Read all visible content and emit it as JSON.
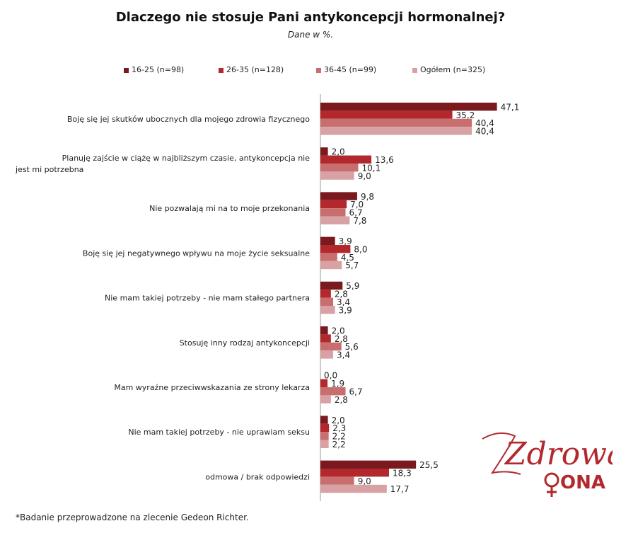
{
  "chart_data": {
    "type": "bar",
    "orientation": "horizontal",
    "title": "Dlaczego nie stosuje Pani antykoncepcji hormonalnej?",
    "subtitle": "Dane w %.",
    "legend_position": "top",
    "categories": [
      "Boję się jej skutków ubocznych dla mojego zdrowia fizycznego",
      "Planuję zajście w ciążę w najbliższym czasie, antykoncepcja nie jest mi potrzebna",
      "Nie pozwalają mi na to moje przekonania",
      "Boję się jej negatywnego wpływu na moje życie seksualne",
      "Nie mam takiej potrzeby - nie mam stałego partnera",
      "Stosuję inny rodzaj antykoncepcji",
      "Mam wyraźne przeciwwskazania ze strony lekarza",
      "Nie mam takiej potrzeby - nie uprawiam seksu",
      "odmowa / brak odpowiedzi"
    ],
    "series": [
      {
        "name": "16-25 (n=98)",
        "color": "#7b1a1e",
        "values": [
          47.1,
          2.0,
          9.8,
          3.9,
          5.9,
          2.0,
          0.0,
          2.0,
          25.5
        ],
        "labels": [
          "47,1",
          "2,0",
          "9,8",
          "3,9",
          "5,9",
          "2,0",
          "0,0",
          "2,0",
          "25,5"
        ]
      },
      {
        "name": "26-35 (n=128)",
        "color": "#b3282d",
        "values": [
          35.2,
          13.6,
          7.0,
          8.0,
          2.8,
          2.8,
          1.9,
          2.3,
          18.3
        ],
        "labels": [
          "35,2",
          "13,6",
          "7,0",
          "8,0",
          "2,8",
          "2,8",
          "1,9",
          "2,3",
          "18,3"
        ]
      },
      {
        "name": "36-45 (n=99)",
        "color": "#c96e6f",
        "values": [
          40.4,
          10.1,
          6.7,
          4.5,
          3.4,
          5.6,
          6.7,
          2.2,
          9.0
        ],
        "labels": [
          "40,4",
          "10,1",
          "6,7",
          "4,5",
          "3,4",
          "5,6",
          "6,7",
          "2,2",
          "9,0"
        ]
      },
      {
        "name": "Ogółem (n=325)",
        "color": "#d8a1a3",
        "values": [
          40.4,
          9.0,
          7.8,
          5.7,
          3.9,
          3.4,
          2.8,
          2.2,
          17.7
        ],
        "labels": [
          "40,4",
          "9,0",
          "7,8",
          "5,7",
          "3,9",
          "3,4",
          "2,8",
          "2,2",
          "17,7"
        ]
      }
    ],
    "xlim": [
      0,
      50
    ],
    "grid": false
  },
  "footnote": "*Badanie przeprowadzone na zlecenie Gedeon Richter.",
  "logo": {
    "line1": "Zdrowa",
    "line2": "ONA",
    "color": "#b3282d"
  }
}
